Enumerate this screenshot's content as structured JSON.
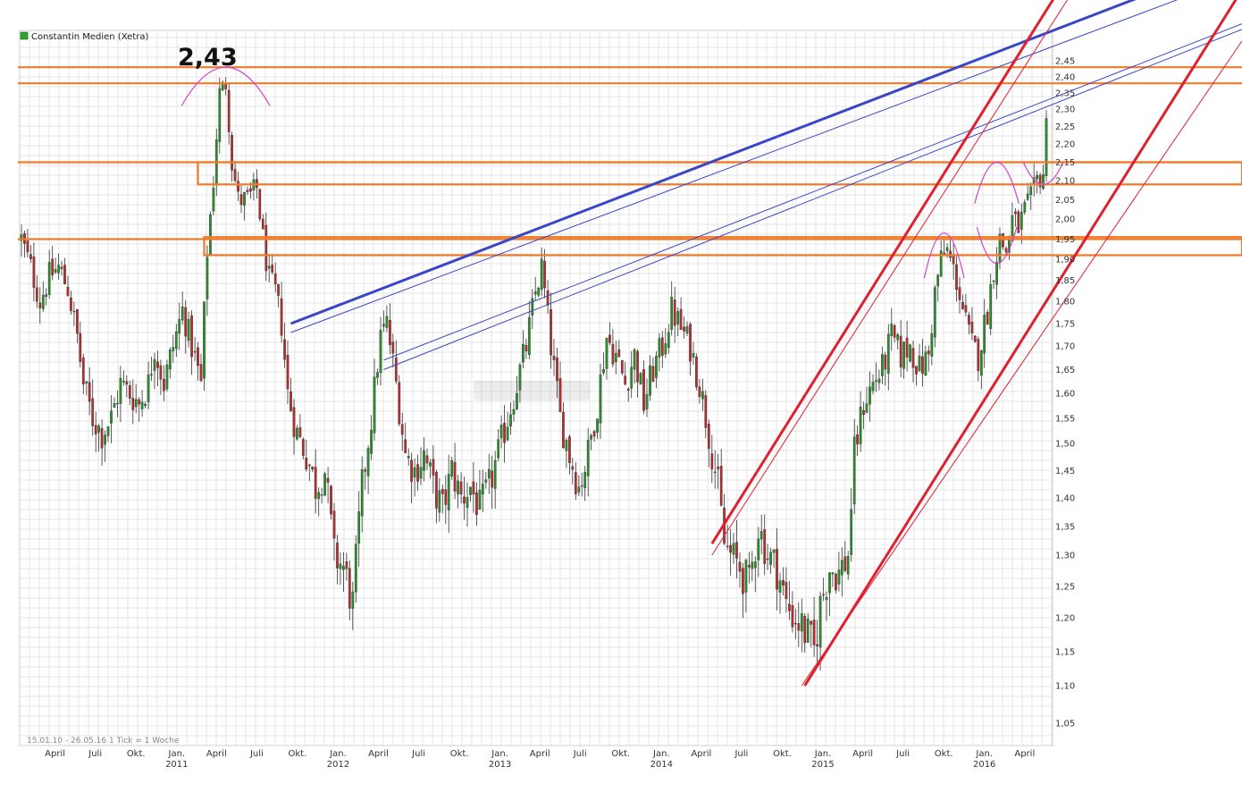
{
  "chart_data": {
    "type": "candlestick",
    "title": "Constantin Medien (Xetra)",
    "legend_position": "top-left",
    "legend_color": "#2ea52e",
    "footer": "15.01.10 - 26.05.16   1 Tick = 1 Woche",
    "peak_annotation": "2,43",
    "up_color": "#2d8a2d",
    "down_color": "#b03030",
    "grid": true,
    "x_start": "2010-01-15",
    "x_end": "2016-05-26",
    "x_ticks": [
      {
        "date": "2010-04-01",
        "label": "April"
      },
      {
        "date": "2010-07-01",
        "label": "Juli"
      },
      {
        "date": "2010-10-01",
        "label": "Okt."
      },
      {
        "date": "2011-01-01",
        "label": "Jan.",
        "year": "2011"
      },
      {
        "date": "2011-04-01",
        "label": "April"
      },
      {
        "date": "2011-07-01",
        "label": "Juli"
      },
      {
        "date": "2011-10-01",
        "label": "Okt."
      },
      {
        "date": "2012-01-01",
        "label": "Jan.",
        "year": "2012"
      },
      {
        "date": "2012-04-01",
        "label": "April"
      },
      {
        "date": "2012-07-01",
        "label": "Juli"
      },
      {
        "date": "2012-10-01",
        "label": "Okt."
      },
      {
        "date": "2013-01-01",
        "label": "Jan.",
        "year": "2013"
      },
      {
        "date": "2013-04-01",
        "label": "April"
      },
      {
        "date": "2013-07-01",
        "label": "Juli"
      },
      {
        "date": "2013-10-01",
        "label": "Okt."
      },
      {
        "date": "2014-01-01",
        "label": "Jan.",
        "year": "2014"
      },
      {
        "date": "2014-04-01",
        "label": "April"
      },
      {
        "date": "2014-07-01",
        "label": "Juli"
      },
      {
        "date": "2014-10-01",
        "label": "Okt."
      },
      {
        "date": "2015-01-01",
        "label": "Jan.",
        "year": "2015"
      },
      {
        "date": "2015-04-01",
        "label": "April"
      },
      {
        "date": "2015-07-01",
        "label": "Juli"
      },
      {
        "date": "2015-10-01",
        "label": "Okt."
      },
      {
        "date": "2016-01-01",
        "label": "Jan.",
        "year": "2016"
      },
      {
        "date": "2016-04-01",
        "label": "April"
      }
    ],
    "y_ticks": [
      {
        "value": 1.05,
        "label": "1,05"
      },
      {
        "value": 1.1,
        "label": "1,10"
      },
      {
        "value": 1.15,
        "label": "1,15"
      },
      {
        "value": 1.2,
        "label": "1,20"
      },
      {
        "value": 1.25,
        "label": "1,25"
      },
      {
        "value": 1.3,
        "label": "1,30"
      },
      {
        "value": 1.35,
        "label": "1,35"
      },
      {
        "value": 1.4,
        "label": "1,40"
      },
      {
        "value": 1.45,
        "label": "1,45"
      },
      {
        "value": 1.5,
        "label": "1,50"
      },
      {
        "value": 1.55,
        "label": "1,55"
      },
      {
        "value": 1.6,
        "label": "1,60"
      },
      {
        "value": 1.65,
        "label": "1,65"
      },
      {
        "value": 1.7,
        "label": "1,70"
      },
      {
        "value": 1.75,
        "label": "1,75"
      },
      {
        "value": 1.8,
        "label": "1,80"
      },
      {
        "value": 1.85,
        "label": "1,85"
      },
      {
        "value": 1.9,
        "label": "1,90"
      },
      {
        "value": 1.95,
        "label": "1,95"
      },
      {
        "value": 2.0,
        "label": "2,00"
      },
      {
        "value": 2.05,
        "label": "2,05"
      },
      {
        "value": 2.1,
        "label": "2,10"
      },
      {
        "value": 2.15,
        "label": "2,15"
      },
      {
        "value": 2.2,
        "label": "2,20"
      },
      {
        "value": 2.25,
        "label": "2,25"
      },
      {
        "value": 2.3,
        "label": "2,30"
      },
      {
        "value": 2.35,
        "label": "2,35"
      },
      {
        "value": 2.4,
        "label": "2,40"
      },
      {
        "value": 2.45,
        "label": "2,45"
      }
    ],
    "price_path": [
      [
        "2010-01-15",
        1.95
      ],
      [
        "2010-02-05",
        1.88
      ],
      [
        "2010-02-26",
        1.8
      ],
      [
        "2010-03-19",
        1.86
      ],
      [
        "2010-04-09",
        1.88
      ],
      [
        "2010-04-30",
        1.83
      ],
      [
        "2010-05-21",
        1.72
      ],
      [
        "2010-06-04",
        1.62
      ],
      [
        "2010-06-25",
        1.55
      ],
      [
        "2010-07-16",
        1.52
      ],
      [
        "2010-08-06",
        1.55
      ],
      [
        "2010-08-27",
        1.62
      ],
      [
        "2010-09-17",
        1.6
      ],
      [
        "2010-10-08",
        1.58
      ],
      [
        "2010-10-29",
        1.62
      ],
      [
        "2010-11-12",
        1.7
      ],
      [
        "2010-12-03",
        1.62
      ],
      [
        "2010-12-24",
        1.7
      ],
      [
        "2011-01-14",
        1.78
      ],
      [
        "2011-02-04",
        1.7
      ],
      [
        "2011-02-25",
        1.62
      ],
      [
        "2011-03-11",
        1.92
      ],
      [
        "2011-03-25",
        2.1
      ],
      [
        "2011-04-08",
        2.35
      ],
      [
        "2011-04-22",
        2.38
      ],
      [
        "2011-05-06",
        2.15
      ],
      [
        "2011-05-20",
        2.05
      ],
      [
        "2011-06-10",
        2.05
      ],
      [
        "2011-07-01",
        2.08
      ],
      [
        "2011-07-15",
        1.95
      ],
      [
        "2011-07-29",
        1.85
      ],
      [
        "2011-08-12",
        1.82
      ],
      [
        "2011-08-26",
        1.75
      ],
      [
        "2011-09-09",
        1.6
      ],
      [
        "2011-09-30",
        1.52
      ],
      [
        "2011-10-21",
        1.48
      ],
      [
        "2011-11-11",
        1.42
      ],
      [
        "2011-12-02",
        1.45
      ],
      [
        "2011-12-23",
        1.3
      ],
      [
        "2012-01-13",
        1.28
      ],
      [
        "2012-02-03",
        1.22
      ],
      [
        "2012-02-24",
        1.42
      ],
      [
        "2012-03-16",
        1.55
      ],
      [
        "2012-04-06",
        1.72
      ],
      [
        "2012-04-20",
        1.75
      ],
      [
        "2012-05-11",
        1.62
      ],
      [
        "2012-06-01",
        1.48
      ],
      [
        "2012-06-22",
        1.45
      ],
      [
        "2012-07-13",
        1.48
      ],
      [
        "2012-08-03",
        1.42
      ],
      [
        "2012-08-24",
        1.38
      ],
      [
        "2012-09-14",
        1.45
      ],
      [
        "2012-10-05",
        1.4
      ],
      [
        "2012-10-26",
        1.42
      ],
      [
        "2012-11-16",
        1.38
      ],
      [
        "2012-12-07",
        1.42
      ],
      [
        "2012-12-28",
        1.48
      ],
      [
        "2013-01-18",
        1.55
      ],
      [
        "2013-02-08",
        1.62
      ],
      [
        "2013-03-01",
        1.7
      ],
      [
        "2013-03-22",
        1.82
      ],
      [
        "2013-04-05",
        1.88
      ],
      [
        "2013-04-26",
        1.7
      ],
      [
        "2013-05-17",
        1.55
      ],
      [
        "2013-06-07",
        1.48
      ],
      [
        "2013-06-28",
        1.42
      ],
      [
        "2013-07-19",
        1.48
      ],
      [
        "2013-08-09",
        1.58
      ],
      [
        "2013-08-30",
        1.72
      ],
      [
        "2013-09-20",
        1.68
      ],
      [
        "2013-10-11",
        1.62
      ],
      [
        "2013-11-01",
        1.68
      ],
      [
        "2013-11-22",
        1.58
      ],
      [
        "2013-12-13",
        1.65
      ],
      [
        "2014-01-03",
        1.7
      ],
      [
        "2014-01-24",
        1.78
      ],
      [
        "2014-02-14",
        1.74
      ],
      [
        "2014-03-07",
        1.7
      ],
      [
        "2014-03-28",
        1.62
      ],
      [
        "2014-04-18",
        1.52
      ],
      [
        "2014-05-09",
        1.42
      ],
      [
        "2014-05-23",
        1.32
      ],
      [
        "2014-06-06",
        1.3
      ],
      [
        "2014-06-27",
        1.28
      ],
      [
        "2014-07-18",
        1.25
      ],
      [
        "2014-08-08",
        1.35
      ],
      [
        "2014-08-29",
        1.3
      ],
      [
        "2014-09-19",
        1.28
      ],
      [
        "2014-10-10",
        1.22
      ],
      [
        "2014-10-31",
        1.2
      ],
      [
        "2014-11-21",
        1.18
      ],
      [
        "2014-12-12",
        1.15
      ],
      [
        "2014-12-26",
        1.22
      ],
      [
        "2015-01-16",
        1.28
      ],
      [
        "2015-02-06",
        1.27
      ],
      [
        "2015-02-27",
        1.3
      ],
      [
        "2015-03-13",
        1.48
      ],
      [
        "2015-04-03",
        1.58
      ],
      [
        "2015-04-24",
        1.62
      ],
      [
        "2015-05-15",
        1.65
      ],
      [
        "2015-06-05",
        1.72
      ],
      [
        "2015-06-26",
        1.68
      ],
      [
        "2015-07-17",
        1.7
      ],
      [
        "2015-08-07",
        1.65
      ],
      [
        "2015-08-28",
        1.68
      ],
      [
        "2015-09-11",
        1.82
      ],
      [
        "2015-09-25",
        1.9
      ],
      [
        "2015-10-09",
        1.92
      ],
      [
        "2015-10-30",
        1.85
      ],
      [
        "2015-11-20",
        1.75
      ],
      [
        "2015-12-04",
        1.7
      ],
      [
        "2015-12-18",
        1.68
      ],
      [
        "2016-01-08",
        1.78
      ],
      [
        "2016-01-22",
        1.88
      ],
      [
        "2016-02-05",
        1.95
      ],
      [
        "2016-02-19",
        1.92
      ],
      [
        "2016-03-04",
        2.0
      ],
      [
        "2016-03-18",
        1.98
      ],
      [
        "2016-04-01",
        2.02
      ],
      [
        "2016-04-15",
        2.05
      ],
      [
        "2016-04-29",
        2.1
      ],
      [
        "2016-05-13",
        2.12
      ],
      [
        "2016-05-26",
        2.38
      ]
    ],
    "annotations": {
      "horizontal_lines": [
        2.43,
        2.38,
        2.15,
        1.95
      ],
      "resistance_boxes": [
        {
          "from": "2011-02-18",
          "top": 2.15,
          "bottom": 2.09
        },
        {
          "from": "2011-03-04",
          "top": 1.955,
          "bottom": 1.91
        }
      ],
      "blue_trendlines": [
        {
          "width": 3,
          "p1": [
            "2011-09-16",
            1.75
          ],
          "p2": [
            "2016-04-01",
            2.51
          ]
        },
        {
          "width": 1,
          "p1": [
            "2011-09-16",
            1.73
          ],
          "p2": [
            "2016-05-26",
            2.49
          ]
        },
        {
          "width": 1,
          "p1": [
            "2012-04-13",
            1.67
          ],
          "p2": [
            "2016-05-26",
            2.33
          ]
        },
        {
          "width": 1,
          "p1": [
            "2012-04-13",
            1.65
          ],
          "p2": [
            "2016-05-26",
            2.31
          ]
        }
      ],
      "red_channel_lines": [
        {
          "width": 3,
          "p1": [
            "2014-04-25",
            1.32
          ],
          "p2": [
            "2016-05-26",
            2.62
          ]
        },
        {
          "width": 1,
          "p1": [
            "2014-04-25",
            1.3
          ],
          "p2": [
            "2016-05-26",
            2.55
          ]
        },
        {
          "width": 3,
          "p1": [
            "2014-11-21",
            1.1
          ],
          "p2": [
            "2016-05-26",
            1.81
          ]
        },
        {
          "width": 1,
          "p1": [
            "2014-11-14",
            1.1
          ],
          "p2": [
            "2016-05-26",
            1.75
          ]
        }
      ],
      "magenta_arcs": [
        {
          "center": "2011-04-22",
          "value": 2.43,
          "half_width_days": 100,
          "drop": 0.12
        },
        {
          "center": "2015-10-02",
          "value": 1.965,
          "half_width_days": 45,
          "drop": 0.11
        },
        {
          "center": "2016-01-29",
          "value": 2.15,
          "half_width_days": 50,
          "drop": 0.11
        },
        {
          "center": "2016-01-29",
          "value": 1.89,
          "half_width_days": 45,
          "drop": -0.09
        },
        {
          "center": "2016-05-13",
          "value": 2.09,
          "half_width_days": 45,
          "drop": -0.06
        }
      ]
    }
  }
}
